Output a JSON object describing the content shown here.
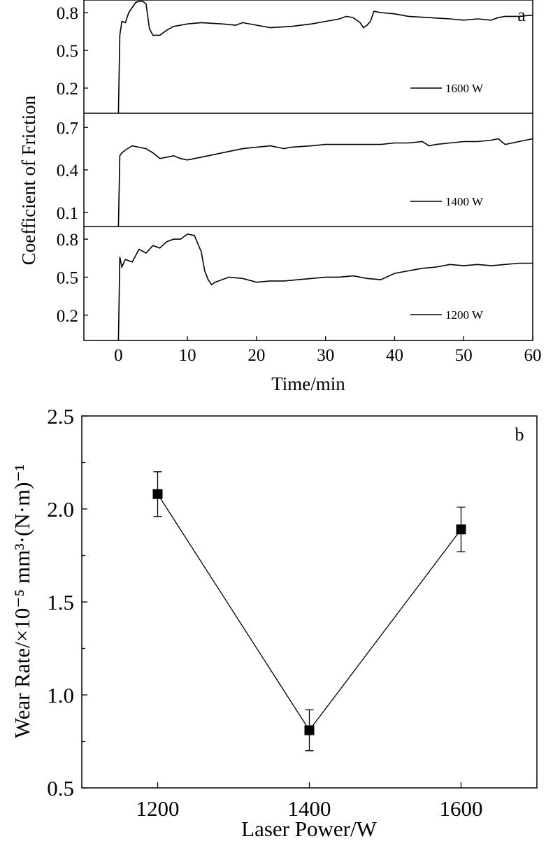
{
  "chart_data": [
    {
      "type": "line",
      "panel_label": "a",
      "xlabel": "Time/min",
      "ylabel": "Coefficient of Friction",
      "xlim": [
        -5,
        60
      ],
      "x_ticks": [
        "0",
        "10",
        "20",
        "30",
        "40",
        "50",
        "60"
      ],
      "grid": false,
      "legend_position": "bottom-right",
      "panels": [
        {
          "name": "1600 W",
          "ylim": [
            0.0,
            0.9
          ],
          "y_ticks": [
            "0.2",
            "0.5",
            "0.8"
          ],
          "x": [
            0,
            0.2,
            0.5,
            1,
            1.5,
            2,
            2.5,
            3,
            3.5,
            4,
            4.5,
            5,
            6,
            7,
            8,
            10,
            12,
            15,
            17,
            18,
            20,
            22,
            25,
            28,
            30,
            32,
            33,
            34,
            35,
            35.5,
            36,
            36.5,
            37,
            38,
            40,
            42,
            45,
            48,
            50,
            52,
            54,
            55,
            56,
            58,
            60
          ],
          "y": [
            0.0,
            0.62,
            0.73,
            0.72,
            0.8,
            0.84,
            0.88,
            0.89,
            0.89,
            0.87,
            0.67,
            0.62,
            0.62,
            0.66,
            0.69,
            0.71,
            0.72,
            0.71,
            0.7,
            0.72,
            0.7,
            0.68,
            0.69,
            0.71,
            0.73,
            0.75,
            0.77,
            0.76,
            0.72,
            0.68,
            0.7,
            0.73,
            0.81,
            0.8,
            0.79,
            0.77,
            0.76,
            0.75,
            0.74,
            0.75,
            0.74,
            0.76,
            0.77,
            0.77,
            0.78
          ]
        },
        {
          "name": "1400 W",
          "ylim": [
            0.0,
            0.8
          ],
          "y_ticks": [
            "0.1",
            "0.4",
            "0.7"
          ],
          "x": [
            0,
            0.2,
            0.5,
            1,
            2,
            3,
            4,
            5,
            6,
            7,
            8,
            9,
            10,
            12,
            15,
            18,
            20,
            22,
            24,
            25,
            28,
            30,
            35,
            38,
            40,
            42,
            44,
            45,
            46,
            48,
            50,
            52,
            54,
            55,
            56,
            58,
            60
          ],
          "y": [
            0.0,
            0.5,
            0.52,
            0.54,
            0.57,
            0.56,
            0.55,
            0.52,
            0.48,
            0.49,
            0.5,
            0.48,
            0.47,
            0.49,
            0.52,
            0.55,
            0.56,
            0.57,
            0.55,
            0.56,
            0.57,
            0.58,
            0.58,
            0.58,
            0.59,
            0.59,
            0.6,
            0.57,
            0.58,
            0.59,
            0.6,
            0.6,
            0.61,
            0.62,
            0.58,
            0.6,
            0.62
          ]
        },
        {
          "name": "1200 W",
          "ylim": [
            0.0,
            0.9
          ],
          "y_ticks": [
            "0.2",
            "0.5",
            "0.8"
          ],
          "x": [
            0,
            0.2,
            0.5,
            1,
            2,
            3,
            4,
            5,
            6,
            7,
            8,
            9,
            10,
            11,
            12,
            12.5,
            13,
            13.5,
            14,
            16,
            18,
            20,
            22,
            24,
            26,
            28,
            30,
            32,
            34,
            36,
            38,
            40,
            42,
            44,
            46,
            48,
            50,
            52,
            54,
            56,
            58,
            60
          ],
          "y": [
            0.0,
            0.66,
            0.58,
            0.64,
            0.62,
            0.72,
            0.69,
            0.75,
            0.73,
            0.78,
            0.8,
            0.8,
            0.84,
            0.83,
            0.7,
            0.55,
            0.48,
            0.44,
            0.46,
            0.5,
            0.49,
            0.46,
            0.47,
            0.47,
            0.48,
            0.49,
            0.5,
            0.5,
            0.51,
            0.49,
            0.48,
            0.53,
            0.55,
            0.57,
            0.58,
            0.6,
            0.59,
            0.6,
            0.59,
            0.6,
            0.61,
            0.61
          ]
        }
      ]
    },
    {
      "type": "scatter",
      "panel_label": "b",
      "xlabel": "Laser Power/W",
      "ylabel": "Wear Rate/×10⁻⁵ mm³·(N·m)⁻¹",
      "xlim": [
        1100,
        1700
      ],
      "ylim": [
        0.5,
        2.5
      ],
      "x_ticks": [
        "1200",
        "1400",
        "1600"
      ],
      "y_ticks": [
        "0.5",
        "1.0",
        "1.5",
        "2.0",
        "2.5"
      ],
      "grid": false,
      "x": [
        1200,
        1400,
        1600
      ],
      "y": [
        2.08,
        0.81,
        1.89
      ],
      "error": [
        0.12,
        0.11,
        0.12
      ]
    }
  ]
}
